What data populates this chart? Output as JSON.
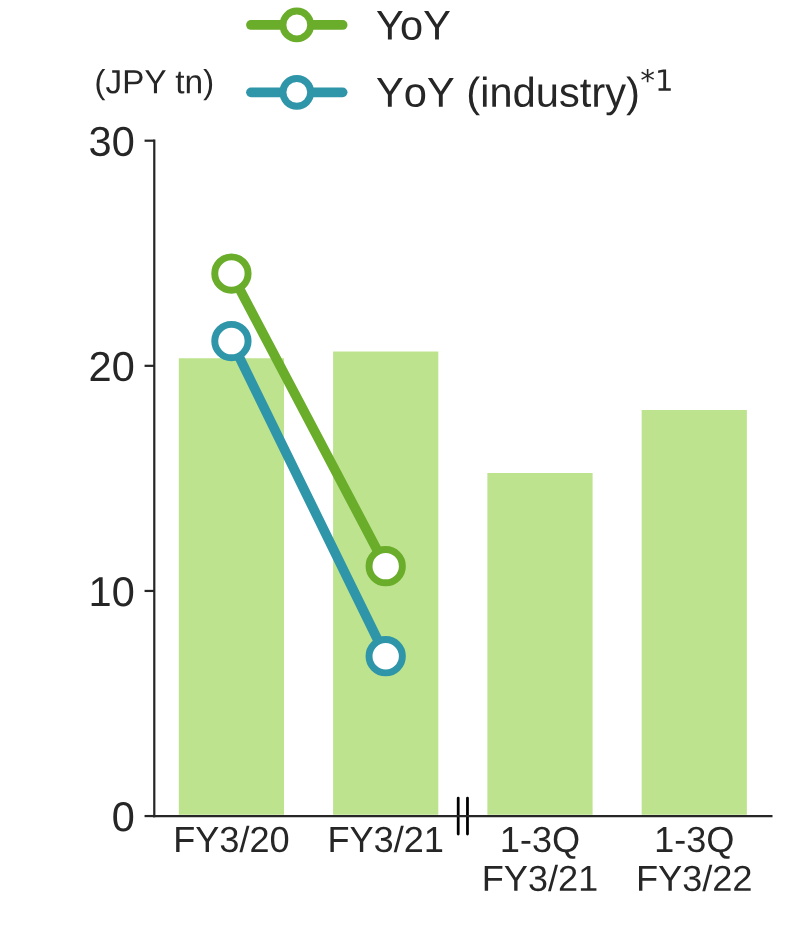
{
  "chart_data": {
    "type": "bar",
    "ylabel": "(JPY tn)",
    "categories": [
      "FY3/20",
      "FY3/21",
      "1-3Q\nFY3/21",
      "1-3Q\nFY3/22"
    ],
    "series": [
      {
        "color": "#bde38f",
        "values": [
          20.4,
          20.7,
          15.3,
          18.1
        ]
      },
      {
        "type": "line",
        "name": "YoY",
        "color": "#6aad2a",
        "values": [
          24.1,
          11.1,
          null,
          null
        ]
      },
      {
        "type": "line",
        "name": "YoY (industry)$^{*1}$",
        "color": "#2f95a8",
        "values": [
          21.1,
          7.1,
          null,
          null
        ]
      }
    ],
    "ylim": [
      0,
      30
    ],
    "yticks": [
      0,
      10,
      20,
      30
    ],
    "grid": false,
    "legend": "top",
    "marker": "circle",
    "line_style": "solid"
  }
}
